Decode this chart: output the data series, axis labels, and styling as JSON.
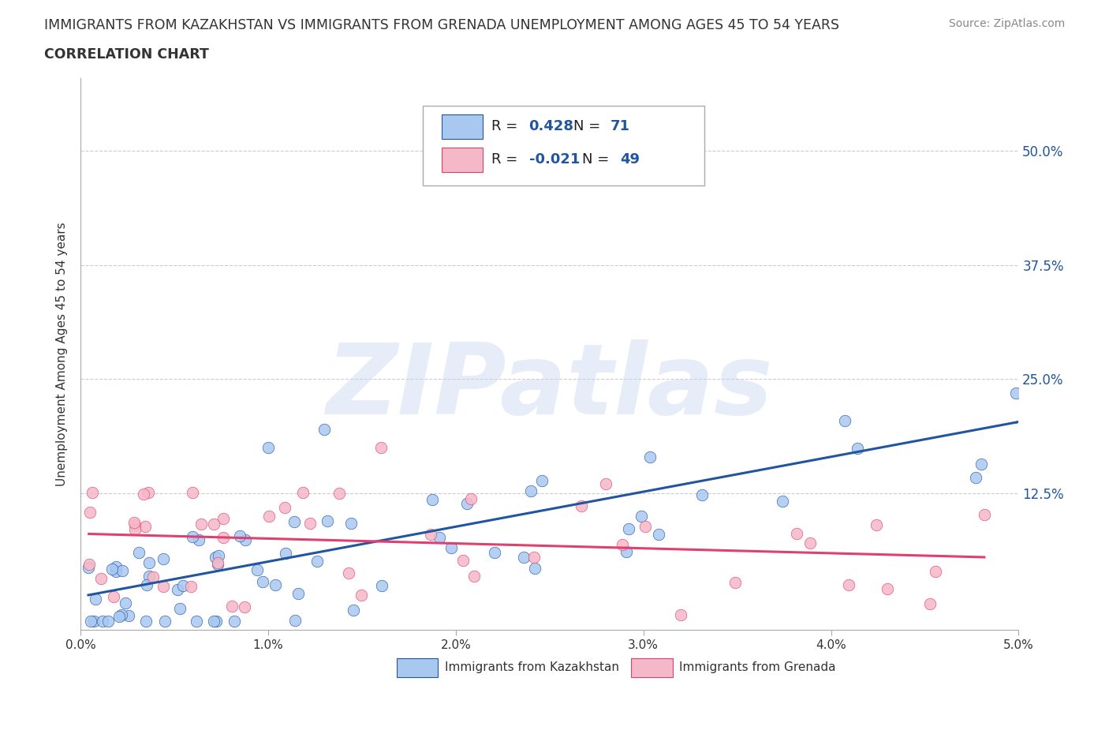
{
  "title_line1": "IMMIGRANTS FROM KAZAKHSTAN VS IMMIGRANTS FROM GRENADA UNEMPLOYMENT AMONG AGES 45 TO 54 YEARS",
  "title_line2": "CORRELATION CHART",
  "source_text": "Source: ZipAtlas.com",
  "ylabel": "Unemployment Among Ages 45 to 54 years",
  "xlim": [
    0.0,
    0.05
  ],
  "ylim": [
    -0.025,
    0.58
  ],
  "xticks": [
    0.0,
    0.01,
    0.02,
    0.03,
    0.04,
    0.05
  ],
  "xticklabels": [
    "0.0%",
    "1.0%",
    "2.0%",
    "3.0%",
    "4.0%",
    "5.0%"
  ],
  "yticks": [
    0.0,
    0.125,
    0.25,
    0.375,
    0.5
  ],
  "yticklabels": [
    "",
    "12.5%",
    "25.0%",
    "37.5%",
    "50.0%"
  ],
  "kazakhstan_color": "#a8c8f0",
  "grenada_color": "#f5b8c8",
  "kazakh_line_color": "#2255a0",
  "grenada_line_color": "#e04070",
  "kazakh_R": 0.428,
  "kazakh_N": 71,
  "grenada_R": -0.021,
  "grenada_N": 49,
  "watermark": "ZIPatlas",
  "legend_label_kaz": "Immigrants from Kazakhstan",
  "legend_label_gren": "Immigrants from Grenada",
  "background_color": "#ffffff",
  "grid_color": "#cccccc"
}
